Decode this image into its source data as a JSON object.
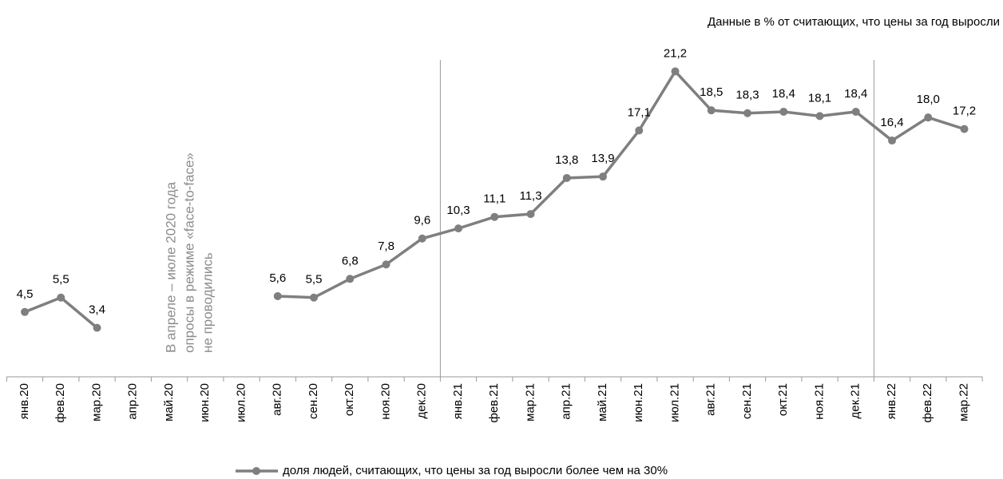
{
  "chart_data": {
    "type": "line",
    "title": "Данные в % от считающих, что цены за год выросли",
    "annotations": [
      "В апреле – июле 2020 года",
      "опросы в режиме «face-to-face»",
      "не проводились"
    ],
    "categories": [
      "янв.20",
      "фев.20",
      "мар.20",
      "апр.20",
      "май.20",
      "июн.20",
      "июл.20",
      "авг.20",
      "сен.20",
      "окт.20",
      "ноя.20",
      "дек.20",
      "янв.21",
      "фев.21",
      "мар.21",
      "апр.21",
      "май.21",
      "июн.21",
      "июл.21",
      "авг.21",
      "сен.21",
      "окт.21",
      "ноя.21",
      "дек.21",
      "янв.22",
      "фев.22",
      "мар.22"
    ],
    "series": [
      {
        "name": "доля людей, считающих, что цены за год выросли более чем на 30%",
        "color": "#7f7f7f",
        "values": [
          4.5,
          5.5,
          3.4,
          null,
          null,
          null,
          null,
          5.6,
          5.5,
          6.8,
          7.8,
          9.6,
          10.3,
          11.1,
          11.3,
          13.8,
          13.9,
          17.1,
          21.2,
          18.5,
          18.3,
          18.4,
          18.1,
          18.4,
          16.4,
          18.0,
          17.2
        ],
        "value_labels": [
          "4,5",
          "5,5",
          "3,4",
          null,
          null,
          null,
          null,
          "5,6",
          "5,5",
          "6,8",
          "7,8",
          "9,6",
          "10,3",
          "11,1",
          "11,3",
          "13,8",
          "13,9",
          "17,1",
          "21,2",
          "18,5",
          "18,3",
          "18,4",
          "18,1",
          "18,4",
          "16,4",
          "18,0",
          "17,2"
        ]
      }
    ],
    "ylim": [
      0,
      22
    ]
  }
}
